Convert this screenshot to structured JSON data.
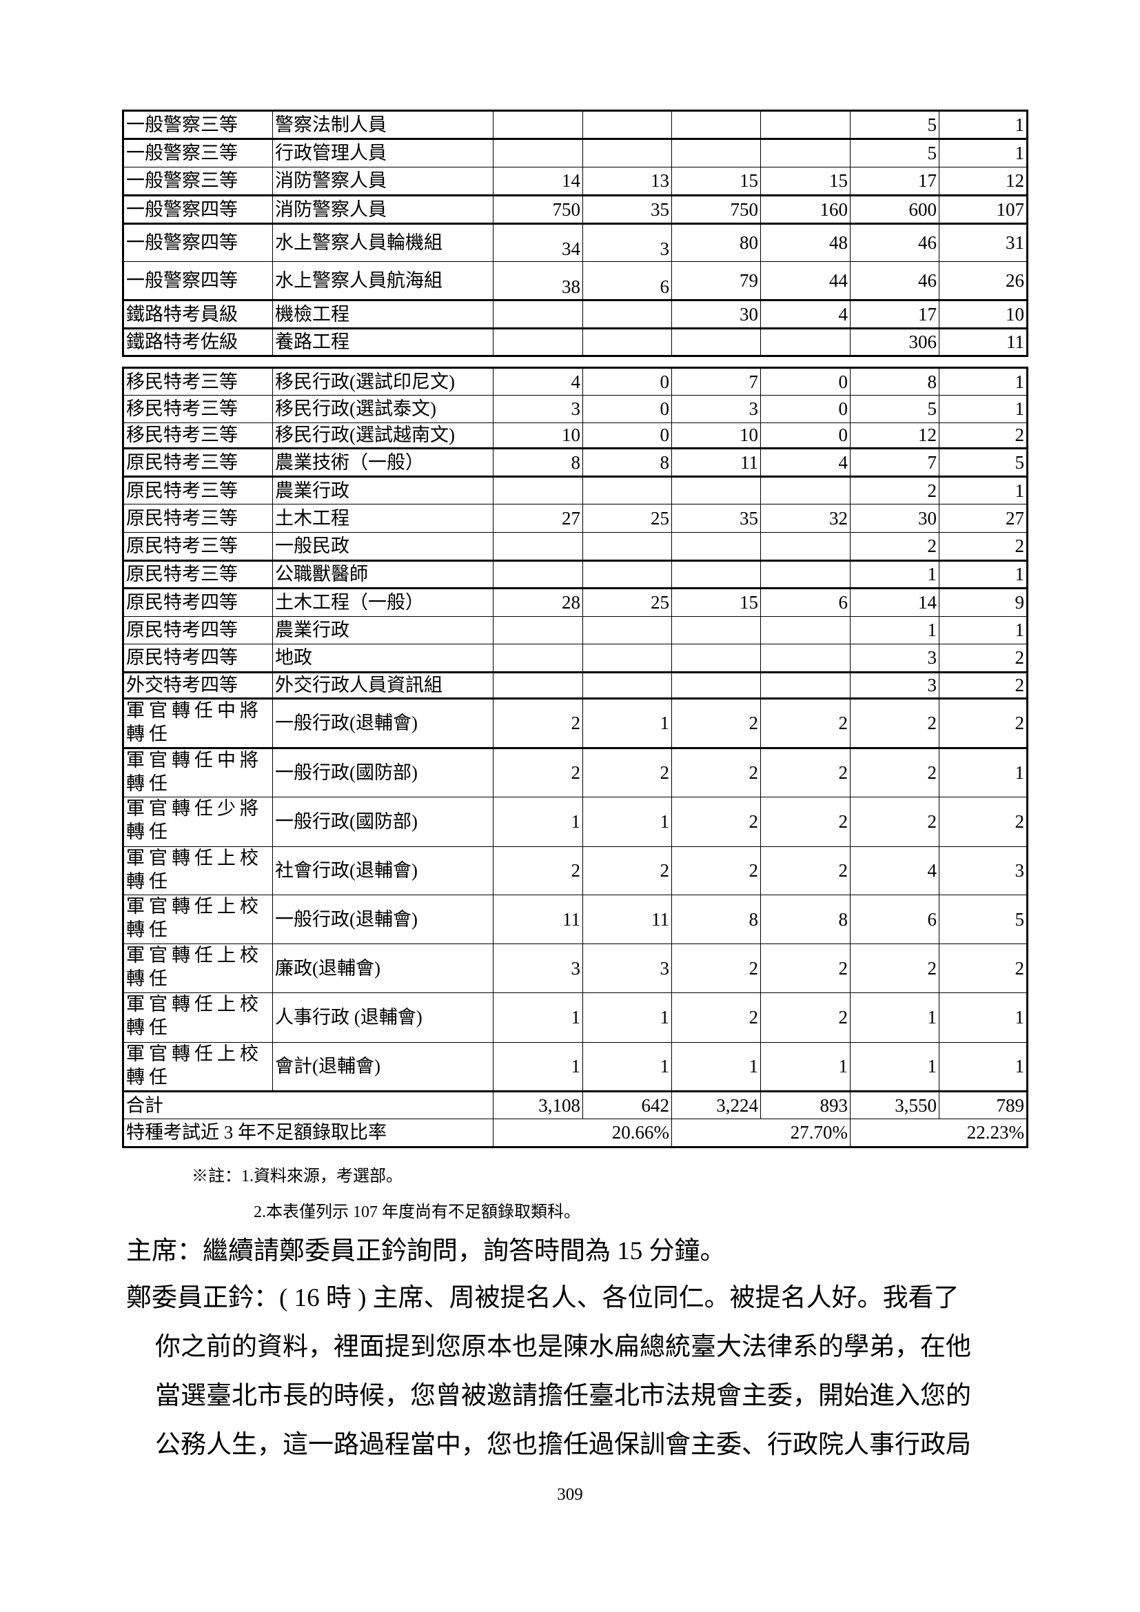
{
  "table1": [
    {
      "exam": "一般警察三等",
      "subject": "警察法制人員",
      "v": [
        "",
        "",
        "",
        "",
        "5",
        "1"
      ]
    },
    {
      "exam": "一般警察三等",
      "subject": "行政管理人員",
      "v": [
        "",
        "",
        "",
        "",
        "5",
        "1"
      ]
    },
    {
      "exam": "一般警察三等",
      "subject": "消防警察人員",
      "v": [
        "14",
        "13",
        "15",
        "15",
        "17",
        "12"
      ]
    },
    {
      "exam": "一般警察四等",
      "subject": "消防警察人員",
      "v": [
        "750",
        "35",
        "750",
        "160",
        "600",
        "107"
      ]
    },
    {
      "exam": "一般警察四等",
      "subject": "水上警察人員輪機組",
      "v": [
        "34",
        "3",
        "80",
        "48",
        "46",
        "31"
      ]
    },
    {
      "exam": "一般警察四等",
      "subject": "水上警察人員航海組",
      "v": [
        "38",
        "6",
        "79",
        "44",
        "46",
        "26"
      ]
    },
    {
      "exam": "鐵路特考員級",
      "subject": "機檢工程",
      "v": [
        "",
        "",
        "30",
        "4",
        "17",
        "10"
      ]
    },
    {
      "exam": "鐵路特考佐級",
      "subject": "養路工程",
      "v": [
        "",
        "",
        "",
        "",
        "306",
        "11"
      ]
    }
  ],
  "table2": [
    {
      "exam": "移民特考三等",
      "subject": "移民行政(選試印尼文)",
      "v": [
        "4",
        "0",
        "7",
        "0",
        "8",
        "1"
      ]
    },
    {
      "exam": "移民特考三等",
      "subject": "移民行政(選試泰文)",
      "v": [
        "3",
        "0",
        "3",
        "0",
        "5",
        "1"
      ]
    },
    {
      "exam": "移民特考三等",
      "subject": "移民行政(選試越南文)",
      "v": [
        "10",
        "0",
        "10",
        "0",
        "12",
        "2"
      ]
    },
    {
      "exam": "原民特考三等",
      "subject": "農業技術（一般）",
      "v": [
        "8",
        "8",
        "11",
        "4",
        "7",
        "5"
      ]
    },
    {
      "exam": "原民特考三等",
      "subject": "農業行政",
      "v": [
        "",
        "",
        "",
        "",
        "2",
        "1"
      ]
    },
    {
      "exam": "原民特考三等",
      "subject": "土木工程",
      "v": [
        "27",
        "25",
        "35",
        "32",
        "30",
        "27"
      ]
    },
    {
      "exam": "原民特考三等",
      "subject": "一般民政",
      "v": [
        "",
        "",
        "",
        "",
        "2",
        "2"
      ]
    },
    {
      "exam": "原民特考三等",
      "subject": "公職獸醫師",
      "v": [
        "",
        "",
        "",
        "",
        "1",
        "1"
      ]
    },
    {
      "exam": "原民特考四等",
      "subject": "土木工程（一般）",
      "v": [
        "28",
        "25",
        "15",
        "6",
        "14",
        "9"
      ]
    },
    {
      "exam": "原民特考四等",
      "subject": "農業行政",
      "v": [
        "",
        "",
        "",
        "",
        "1",
        "1"
      ]
    },
    {
      "exam": "原民特考四等",
      "subject": "地政",
      "v": [
        "",
        "",
        "",
        "",
        "3",
        "2"
      ]
    },
    {
      "exam": "外交特考四等",
      "subject": "外交行政人員資訊組",
      "v": [
        "",
        "",
        "",
        "",
        "3",
        "2"
      ]
    },
    {
      "exam": "軍官轉任中將轉任",
      "subject": "一般行政(退輔會)",
      "v": [
        "2",
        "1",
        "2",
        "2",
        "2",
        "2"
      ]
    },
    {
      "exam": "軍官轉任中將轉任",
      "subject": "一般行政(國防部)",
      "v": [
        "2",
        "2",
        "2",
        "2",
        "2",
        "1"
      ]
    },
    {
      "exam": "軍官轉任少將轉任",
      "subject": "一般行政(國防部)",
      "v": [
        "1",
        "1",
        "2",
        "2",
        "2",
        "2"
      ]
    },
    {
      "exam": "軍官轉任上校轉任",
      "subject": "社會行政(退輔會)",
      "v": [
        "2",
        "2",
        "2",
        "2",
        "4",
        "3"
      ]
    },
    {
      "exam": "軍官轉任上校轉任",
      "subject": "一般行政(退輔會)",
      "v": [
        "11",
        "11",
        "8",
        "8",
        "6",
        "5"
      ]
    },
    {
      "exam": "軍官轉任上校轉任",
      "subject": "廉政(退輔會)",
      "v": [
        "3",
        "3",
        "2",
        "2",
        "2",
        "2"
      ]
    },
    {
      "exam": "軍官轉任上校轉任",
      "subject": "人事行政 (退輔會)",
      "v": [
        "1",
        "1",
        "2",
        "2",
        "1",
        "1"
      ]
    },
    {
      "exam": "軍官轉任上校轉任",
      "subject": "會計(退輔會)",
      "v": [
        "1",
        "1",
        "1",
        "1",
        "1",
        "1"
      ]
    }
  ],
  "total": {
    "label": "合計",
    "v": [
      "3,108",
      "642",
      "3,224",
      "893",
      "3,550",
      "789"
    ]
  },
  "rate": {
    "label": "特種考試近 3 年不足額錄取比率",
    "v": [
      "20.66%",
      "27.70%",
      "22.23%"
    ]
  },
  "notes": [
    "※註：1.資料來源，考選部。",
    "2.本表僅列示 107 年度尚有不足額錄取類科。"
  ],
  "paragraphs": [
    {
      "first": "主席：繼續請鄭委員正鈐詢問，詢答時間為 15 分鐘。",
      "rest": []
    },
    {
      "first": "鄭委員正鈐：( 16 時 ) 主席、周被提名人、各位同仁。被提名人好。我看了",
      "rest": [
        "你之前的資料，裡面提到您原本也是陳水扁總統臺大法律系的學弟，在他",
        "當選臺北市長的時候，您曾被邀請擔任臺北市法規會主委，開始進入您的",
        "公務人生，這一路過程當中，您也擔任過保訓會主委、行政院人事行政局"
      ]
    }
  ],
  "page_number": "309"
}
